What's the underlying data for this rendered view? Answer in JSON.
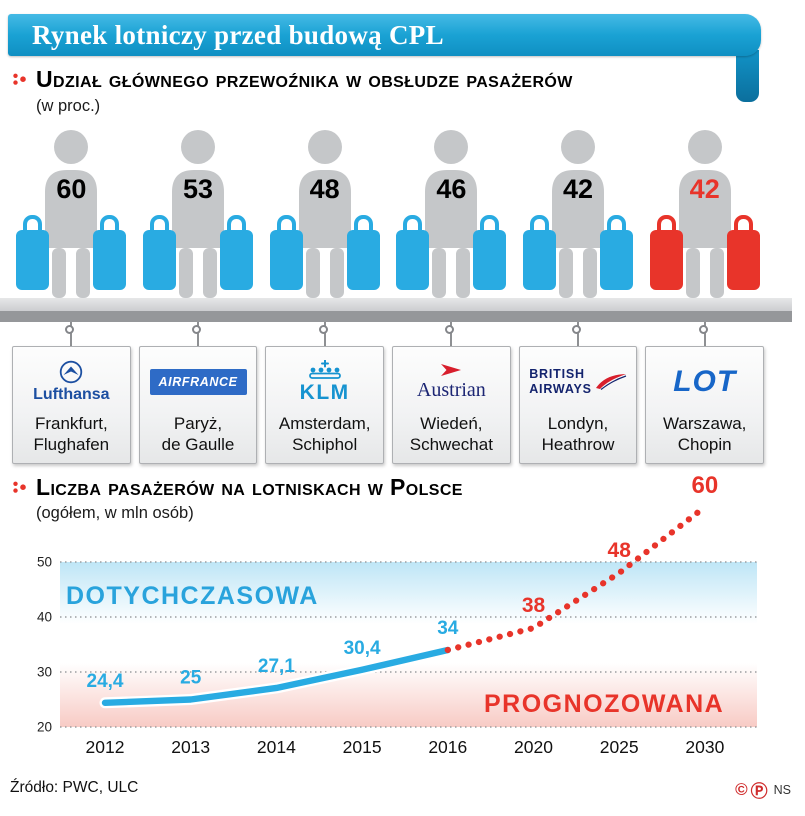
{
  "title": "Rynek lotniczy przed budową CPL",
  "section1": {
    "heading": "Udział głównego przewoźnika w obsłudze pasażerów",
    "subtitle": "(w proc.)",
    "carriers": [
      {
        "share": "60",
        "airline": "Lufthansa",
        "airport_line1": "Frankfurt,",
        "airport_line2": "Flughafen"
      },
      {
        "share": "53",
        "airline": "AIRFRANCE",
        "airport_line1": "Paryż,",
        "airport_line2": "de Gaulle"
      },
      {
        "share": "48",
        "airline": "KLM",
        "airport_line1": "Amsterdam,",
        "airport_line2": "Schiphol"
      },
      {
        "share": "46",
        "airline": "Austrian",
        "airport_line1": "Wiedeń,",
        "airport_line2": "Schwechat"
      },
      {
        "share": "42",
        "airline_line1": "BRITISH",
        "airline_line2": "AIRWAYS",
        "airport_line1": "Londyn,",
        "airport_line2": "Heathrow"
      },
      {
        "share": "42",
        "airline": "LOT",
        "airport_line1": "Warszawa,",
        "airport_line2": "Chopin"
      }
    ]
  },
  "section2": {
    "heading": "Liczba pasażerów na lotniskach w Polsce",
    "subtitle": "(ogółem, w mln osób)"
  },
  "chart_data": {
    "type": "line",
    "title": "Liczba pasażerów na lotniskach w Polsce",
    "ylabel": "(ogółem, w mln osób)",
    "categories": [
      "2012",
      "2013",
      "2014",
      "2015",
      "2016",
      "2020",
      "2025",
      "2030"
    ],
    "series": [
      {
        "name": "DOTYCHCZASOWA",
        "color": "#29abe2",
        "style": "solid",
        "values": [
          24.4,
          25,
          27.1,
          30.4,
          34,
          null,
          null,
          null
        ],
        "labels": [
          "24,4",
          "25",
          "27,1",
          "30,4",
          "34",
          "",
          "",
          ""
        ]
      },
      {
        "name": "PROGNOZOWANA",
        "color": "#e8342a",
        "style": "dotted",
        "values": [
          null,
          null,
          null,
          null,
          34,
          38,
          48,
          60
        ],
        "labels": [
          "",
          "",
          "",
          "",
          "",
          "38",
          "48",
          "60"
        ]
      }
    ],
    "ylim": [
      20,
      60
    ],
    "yticks": [
      50,
      40,
      30,
      20
    ],
    "grid": true,
    "legend_position": "inside"
  },
  "footer": {
    "source": "Źródło: PWC, ULC",
    "mark_c": "©",
    "mark_p": "Ⓟ",
    "credit": "NS"
  },
  "colors": {
    "accent_blue": "#29abe2",
    "accent_red": "#e8342a",
    "title_bar_blue": "#1aa2d4",
    "figure_gray": "#c5c7c9"
  }
}
